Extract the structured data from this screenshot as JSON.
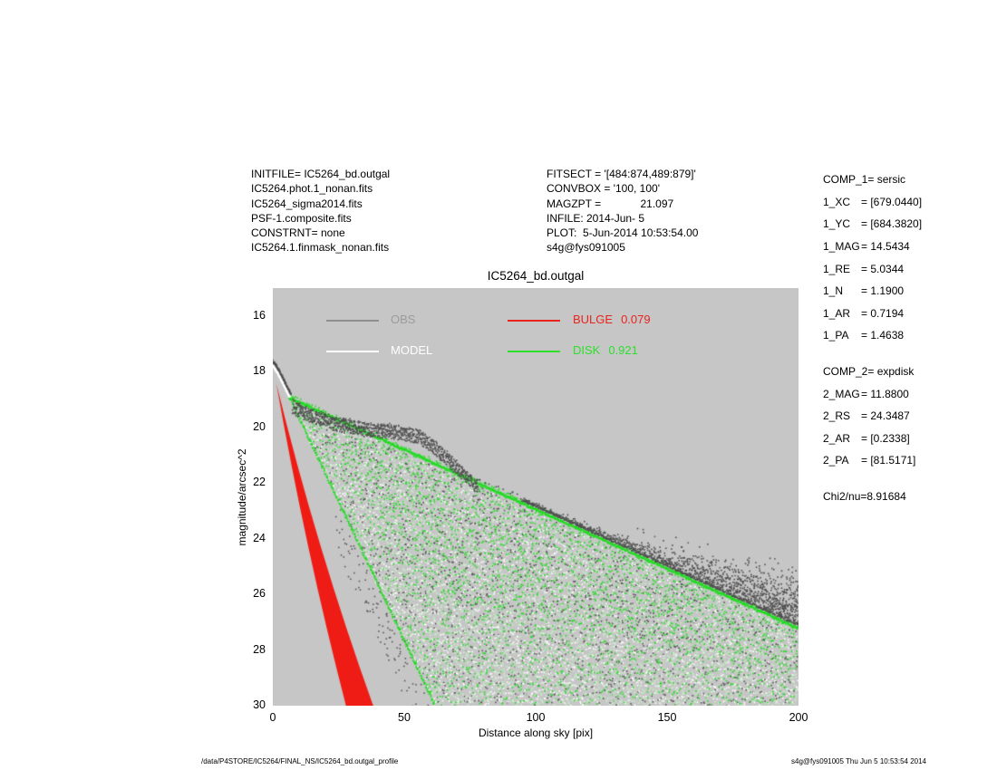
{
  "header": {
    "left_files": [
      "INITFILE= IC5264_bd.outgal",
      "IC5264.phot.1_nonan.fits",
      "IC5264_sigma2014.fits",
      "PSF-1.composite.fits",
      "CONSTRNT= none",
      "IC5264.1.finmask_nonan.fits"
    ],
    "fit_info": [
      "FITSECT = '[484:874,489:879]'",
      "CONVBOX = '100, 100'",
      "MAGZPT =             21.097",
      "INFILE: 2014-Jun- 5",
      "PLOT:  5-Jun-2014 10:53:54.00",
      "s4g@fys091005"
    ]
  },
  "right_panel": {
    "rows": [
      {
        "label": "COMP_1",
        "value": "= sersic",
        "gap": false
      },
      {
        "label": "1_XC",
        "value": "= [679.0440]",
        "gap": false
      },
      {
        "label": "1_YC",
        "value": "= [684.3820]",
        "gap": false
      },
      {
        "label": "1_MAG",
        "value": "= 14.5434",
        "gap": false
      },
      {
        "label": "1_RE",
        "value": "= 5.0344",
        "gap": false
      },
      {
        "label": "1_N",
        "value": "= 1.1900",
        "gap": false
      },
      {
        "label": "1_AR",
        "value": "= 0.7194",
        "gap": false
      },
      {
        "label": "1_PA",
        "value": "= 1.4638",
        "gap": false
      },
      {
        "label": "COMP_2",
        "value": "= expdisk",
        "gap": true
      },
      {
        "label": "2_MAG",
        "value": "= 11.8800",
        "gap": false
      },
      {
        "label": "2_RS",
        "value": "= 24.3487",
        "gap": false
      },
      {
        "label": "2_AR",
        "value": "= [0.2338]",
        "gap": false
      },
      {
        "label": "2_PA",
        "value": "= [81.5171]",
        "gap": false
      },
      {
        "label": "Chi2/nu=",
        "value": "8.91684",
        "gap": true
      }
    ]
  },
  "plot": {
    "legend": [
      {
        "label": "OBS",
        "value": "",
        "text_color": "#9b9b9b",
        "line_color": "#8f8f8f"
      },
      {
        "label": "MODEL",
        "value": "",
        "text_color": "#ffffff",
        "line_color": "#ffffff"
      },
      {
        "label": "BULGE",
        "value": "0.079",
        "text_color": "#e8241c",
        "line_color": "#e8241c"
      },
      {
        "label": "DISK",
        "value": "0.921",
        "text_color": "#2ce02c",
        "line_color": "#2ce02c"
      }
    ]
  },
  "footer": {
    "left": "/data/P4STORE/IC5264/FINAL_NS/IC5264_bd.outgal_profile",
    "right": "s4g@fys091005  Thu Jun  5 10:53:54 2014"
  },
  "chart_data": {
    "type": "scatter",
    "title": "IC5264_bd.outgal",
    "xlabel": "Distance along sky [pix]",
    "ylabel": "magnitude/arcsec^2",
    "xlim": [
      0,
      200
    ],
    "ylim_top": 15,
    "ylim_bottom": 30,
    "y_axis_inverted": true,
    "xticks": [
      0,
      50,
      100,
      150,
      200
    ],
    "yticks": [
      16,
      18,
      20,
      22,
      24,
      26,
      28,
      30
    ],
    "background": "#c6c6c6",
    "grid": false,
    "legend_position": "top-inside",
    "series": [
      {
        "name": "OBS",
        "role": "observed surface brightness points",
        "marker": "dot",
        "color": "#4e4e4e",
        "inner_profile": [
          [
            0,
            17.78
          ],
          [
            1.5,
            17.95
          ],
          [
            3,
            18.2
          ],
          [
            4.5,
            18.5
          ],
          [
            6,
            18.78
          ],
          [
            7,
            18.95
          ]
        ],
        "bump_profile": [
          [
            7.5,
            19.1
          ],
          [
            15,
            19.45
          ],
          [
            25,
            19.75
          ],
          [
            35,
            19.9
          ],
          [
            45,
            20.0
          ],
          [
            55,
            20.15
          ],
          [
            62,
            20.6
          ],
          [
            70,
            21.3
          ],
          [
            78,
            22.0
          ]
        ],
        "bump_thickness_mag": 0.42,
        "outer_cloud": {
          "x_start": 95,
          "x_end": 200,
          "top_mag_at_200": 23.8,
          "hugs_disk_envelope": true
        },
        "median_profile": [
          [
            0,
            17.8
          ],
          [
            10,
            19.2
          ],
          [
            20,
            19.6
          ],
          [
            30,
            19.85
          ],
          [
            40,
            19.95
          ],
          [
            50,
            20.1
          ],
          [
            60,
            20.5
          ],
          [
            70,
            21.3
          ],
          [
            80,
            22.0
          ],
          [
            100,
            23.0
          ],
          [
            125,
            24.0
          ],
          [
            150,
            25.1
          ],
          [
            175,
            26.1
          ],
          [
            200,
            27.2
          ]
        ]
      },
      {
        "name": "MODEL",
        "role": "total model profile",
        "marker": "dot",
        "color": "#ffffff",
        "profile": [
          [
            0,
            17.78
          ],
          [
            2,
            18.08
          ],
          [
            4,
            18.45
          ],
          [
            6,
            18.85
          ],
          [
            6.5,
            18.9
          ]
        ]
      },
      {
        "name": "BULGE",
        "fraction": 0.079,
        "role": "sersic component (filled wedge)",
        "color": "#ee1c14",
        "wedge_tip": [
          1.3,
          18.42
        ],
        "wedge_base_x": [
          29.5,
          40.5
        ],
        "wedge_base_mag": 30
      },
      {
        "name": "DISK",
        "fraction": 0.921,
        "role": "expdisk component (dot fan)",
        "color": "#22dc22",
        "pale_color": "#c8eec8",
        "upper_envelope": [
          [
            6,
            18.9
          ],
          [
            200,
            27.2
          ]
        ],
        "lower_envelope": [
          [
            6,
            18.9
          ],
          [
            61.5,
            30
          ]
        ]
      }
    ]
  }
}
